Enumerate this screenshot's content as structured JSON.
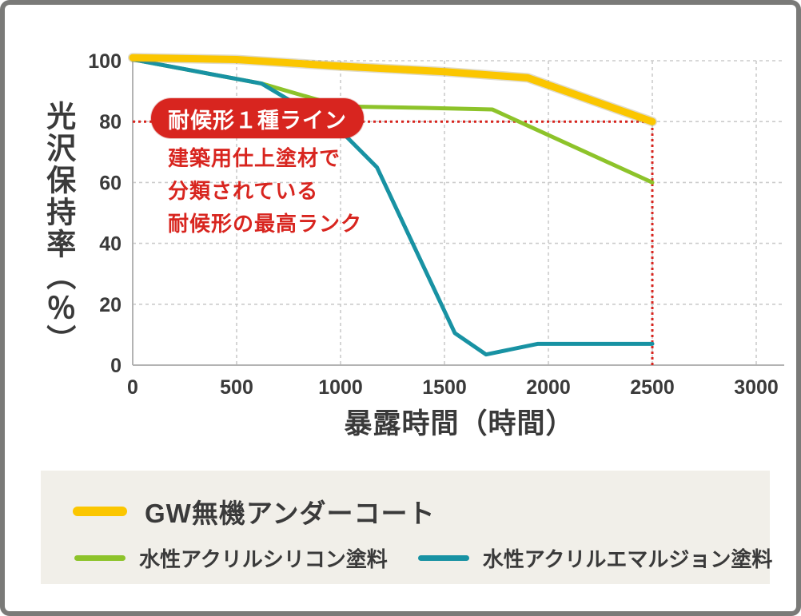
{
  "chart_data": {
    "type": "line",
    "xlabel": "暴露時間（時間）",
    "ylabel": "光沢保持率（％）",
    "xlim": [
      0,
      3000
    ],
    "ylim": [
      0,
      100
    ],
    "xticks": [
      0,
      500,
      1000,
      1500,
      2000,
      2500,
      3000
    ],
    "yticks": [
      0,
      20,
      40,
      60,
      80,
      100
    ],
    "grid": "dashed",
    "legend_position": "bottom",
    "series": [
      {
        "name": "GW無機アンダーコート",
        "color": "#fbc600",
        "line_width": 9,
        "points": [
          [
            0,
            101
          ],
          [
            500,
            100.4
          ],
          [
            1000,
            98.2
          ],
          [
            1500,
            96.4
          ],
          [
            1900,
            94.4
          ],
          [
            2500,
            80
          ]
        ]
      },
      {
        "name": "水性アクリルシリコン塗料",
        "color": "#8dc32a",
        "line_width": 5,
        "points": [
          [
            0,
            100.4
          ],
          [
            620,
            92.5
          ],
          [
            1000,
            85
          ],
          [
            1400,
            84.5
          ],
          [
            1730,
            84
          ],
          [
            2500,
            60
          ]
        ]
      },
      {
        "name": "水性アクリルエマルジョン塗料",
        "color": "#1892a3",
        "line_width": 5,
        "points": [
          [
            0,
            100.4
          ],
          [
            620,
            92.5
          ],
          [
            1000,
            77
          ],
          [
            1175,
            65
          ],
          [
            1550,
            10.5
          ],
          [
            1700,
            3.5
          ],
          [
            1950,
            7
          ],
          [
            2500,
            7
          ]
        ]
      }
    ],
    "reference_lines": {
      "color": "#d8251f",
      "horizontal": {
        "y": 80,
        "x_start": 0,
        "x_end": 2500
      },
      "vertical": {
        "x": 2500,
        "y_start": 0,
        "y_end": 80
      }
    }
  },
  "annotation": {
    "badge_label": "耐候形１種ライン",
    "badge_color": "#d8251f",
    "text_color": "#d8251f",
    "lines": [
      "建築用仕上塗材で",
      "分類されている",
      "耐候形の最高ランク"
    ]
  },
  "colors": {
    "text": "#3a3a3a",
    "grid": "#cbcbcb",
    "axis": "#b3b3b3",
    "legend_bg": "#f1efe9",
    "card_border": "#7a7a78"
  }
}
